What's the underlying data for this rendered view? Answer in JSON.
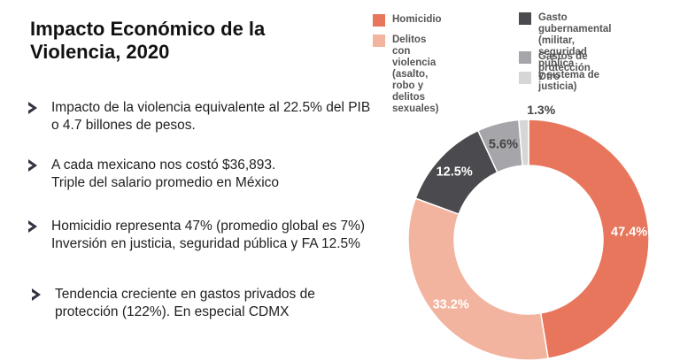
{
  "slide": {
    "title": "Impacto Económico de la Violencia, 2020",
    "bullets": [
      {
        "line1": "Impacto de la violencia equivalente al 22.5% del PIB",
        "line2": "o 4.7 billones de pesos."
      },
      {
        "line1": "A cada mexicano nos costó $36,893.",
        "line2": "Triple del salario promedio en México"
      },
      {
        "line1": "Homicidio representa 47% (promedio global es 7%)",
        "line2": "Inversión en justicia, seguridad pública y FA 12.5%"
      },
      {
        "line1": "Tendencia creciente en gastos privados de",
        "line2": "protección (122%). En especial CDMX"
      }
    ]
  },
  "colors": {
    "homicidio": "#e8765c",
    "delitos": "#f2b49e",
    "gasto_gub": "#4a4a4f",
    "proteccion": "#a5a5aa",
    "otro": "#d6d6d6",
    "bullet_chevron": "#333340"
  },
  "chart_data": {
    "type": "pie",
    "donut": true,
    "title": "",
    "legend_position": "top",
    "categories": [
      "Homicidio",
      "Delitos con violencia\n(asalto, robo y delitos\nsexuales)",
      "Gasto gubernamental\n(militar, seguridad pública\ny sistema de justicia)",
      "Gastos de protección",
      "Otro"
    ],
    "values": [
      47.4,
      33.2,
      12.5,
      5.6,
      1.3
    ],
    "data_labels": [
      "47.4%",
      "33.2%",
      "12.5%",
      "5.6%",
      "1.3%"
    ],
    "colors": [
      "#e8765c",
      "#f2b49e",
      "#4a4a4f",
      "#a5a5aa",
      "#d6d6d6"
    ]
  }
}
